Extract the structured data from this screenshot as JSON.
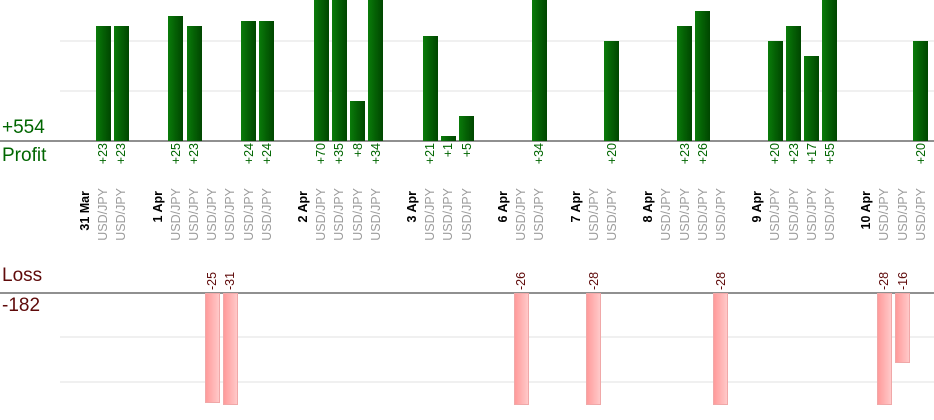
{
  "chart_data": {
    "type": "bar",
    "subtype": "profit-loss-per-trade",
    "symbol_label": "USD/JPY",
    "profit_section": {
      "total_label": "+554",
      "axis_label": "Profit"
    },
    "loss_section": {
      "axis_label": "Loss",
      "total_label": "-182"
    },
    "groups": [
      {
        "date": "31 Mar",
        "trades": [
          {
            "value": 23,
            "label": "+23"
          },
          {
            "value": 23,
            "label": "+23"
          }
        ]
      },
      {
        "date": "1 Apr",
        "trades": [
          {
            "value": 25,
            "label": "+25"
          },
          {
            "value": 23,
            "label": "+23"
          },
          {
            "value": -25,
            "label": "-25"
          },
          {
            "value": -31,
            "label": "-31"
          },
          {
            "value": 24,
            "label": "+24"
          },
          {
            "value": 24,
            "label": "+24"
          }
        ]
      },
      {
        "date": "2 Apr",
        "trades": [
          {
            "value": 70,
            "label": "+70"
          },
          {
            "value": 35,
            "label": "+35"
          },
          {
            "value": 8,
            "label": "+8"
          },
          {
            "value": 34,
            "label": "+34"
          }
        ]
      },
      {
        "date": "3 Apr",
        "trades": [
          {
            "value": 21,
            "label": "+21"
          },
          {
            "value": 1,
            "label": "+1"
          },
          {
            "value": 5,
            "label": "+5"
          }
        ]
      },
      {
        "date": "6 Apr",
        "trades": [
          {
            "value": -26,
            "label": "-26"
          },
          {
            "value": 34,
            "label": "+34"
          }
        ]
      },
      {
        "date": "7 Apr",
        "trades": [
          {
            "value": -28,
            "label": "-28"
          },
          {
            "value": 20,
            "label": "+20"
          }
        ]
      },
      {
        "date": "8 Apr",
        "trades": [
          {
            "value": 0,
            "label": ""
          },
          {
            "value": 23,
            "label": "+23"
          },
          {
            "value": 26,
            "label": "+26"
          },
          {
            "value": -28,
            "label": "-28"
          }
        ]
      },
      {
        "date": "9 Apr",
        "trades": [
          {
            "value": 20,
            "label": "+20"
          },
          {
            "value": 23,
            "label": "+23"
          },
          {
            "value": 17,
            "label": "+17"
          },
          {
            "value": 55,
            "label": "+55"
          }
        ]
      },
      {
        "date": "10 Apr",
        "trades": [
          {
            "value": -28,
            "label": "-28"
          },
          {
            "value": -16,
            "label": "-16"
          },
          {
            "value": 20,
            "label": "+20"
          }
        ]
      }
    ],
    "axes": {
      "profit_gridline_step_units": 10,
      "loss_gridline_step_units": 10,
      "grid": true
    },
    "colors": {
      "profit_bar_light": "#0a7c0a",
      "profit_bar_dark": "#004600",
      "loss_bar_light": "#ffc9c9",
      "loss_bar_dark": "#ff9b9b",
      "loss_bar_border": "#f0a8a8",
      "profit_text": "#006600",
      "loss_text": "#5f0a0a",
      "date_text": "#000000",
      "symbol_text": "#9c9c9c",
      "axis_line": "#909090",
      "gridline": "#f0f0f0"
    }
  }
}
